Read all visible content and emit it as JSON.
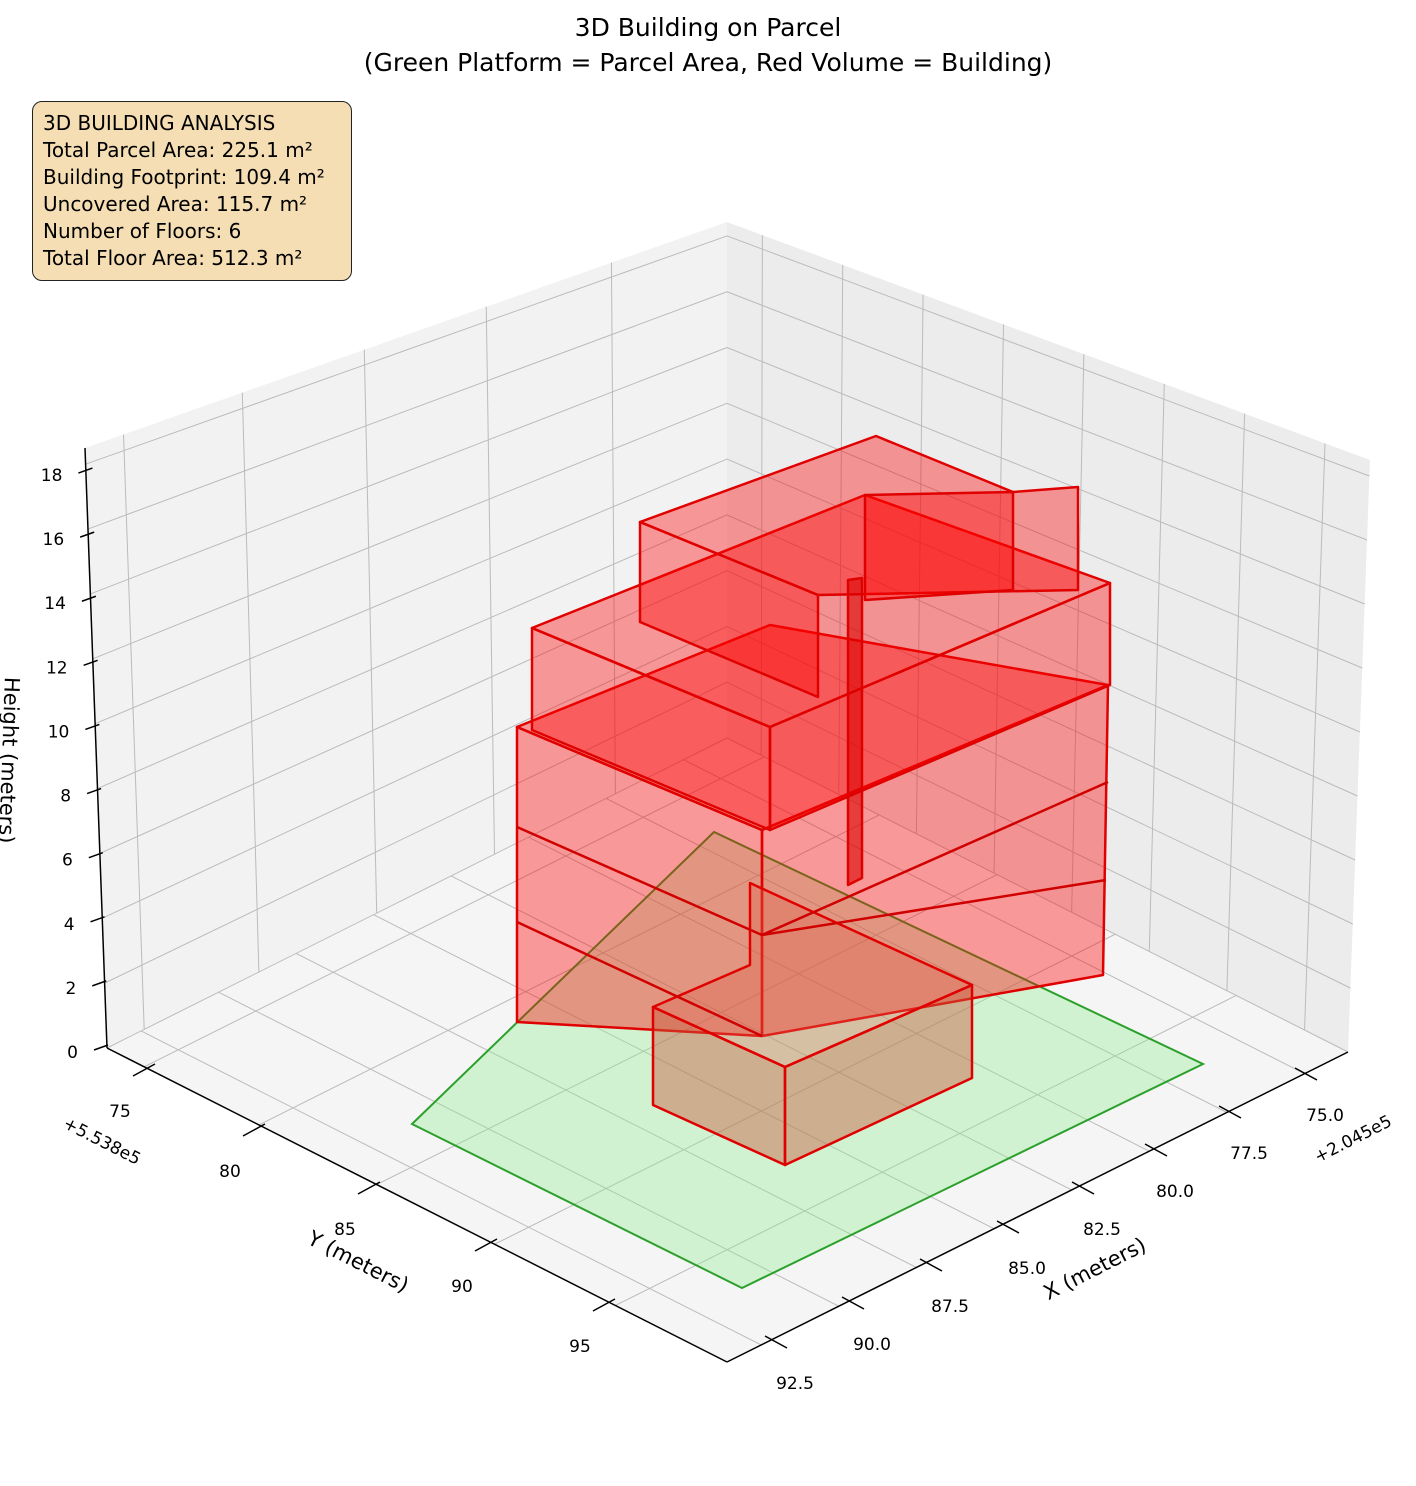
{
  "chart_data": {
    "type": "3d-polygon",
    "title": "3D Building on Parcel",
    "subtitle": "(Green Platform = Parcel Area, Red Volume = Building)",
    "xlabel": "X (meters)",
    "ylabel": "Y (meters)",
    "zlabel": "Height (meters)",
    "x_offset": "+2.045e5",
    "y_offset": "+5.538e5",
    "x_ticks": [
      "75.0",
      "77.5",
      "80.0",
      "82.5",
      "85.0",
      "87.5",
      "90.0",
      "92.5"
    ],
    "y_ticks": [
      "75",
      "80",
      "85",
      "90",
      "95"
    ],
    "z_ticks": [
      "0",
      "2",
      "4",
      "6",
      "8",
      "10",
      "12",
      "14",
      "16",
      "18"
    ],
    "zlim": [
      0,
      18.5
    ],
    "grid": true,
    "colors": {
      "parcel": "#2ca02c",
      "parcel_fill": "#d4f0d4",
      "building": "#ff0000",
      "pane": "#f2f2f2"
    },
    "series": [
      {
        "name": "Parcel Area",
        "color": "green"
      },
      {
        "name": "Building",
        "color": "red"
      }
    ]
  },
  "info_box": {
    "lines": [
      "3D BUILDING ANALYSIS",
      "Total Parcel Area: 225.1 m²",
      "Building Footprint: 109.4 m²",
      "Uncovered Area: 115.7 m²",
      "Number of Floors: 6",
      "Total Floor Area: 512.3 m²"
    ]
  }
}
